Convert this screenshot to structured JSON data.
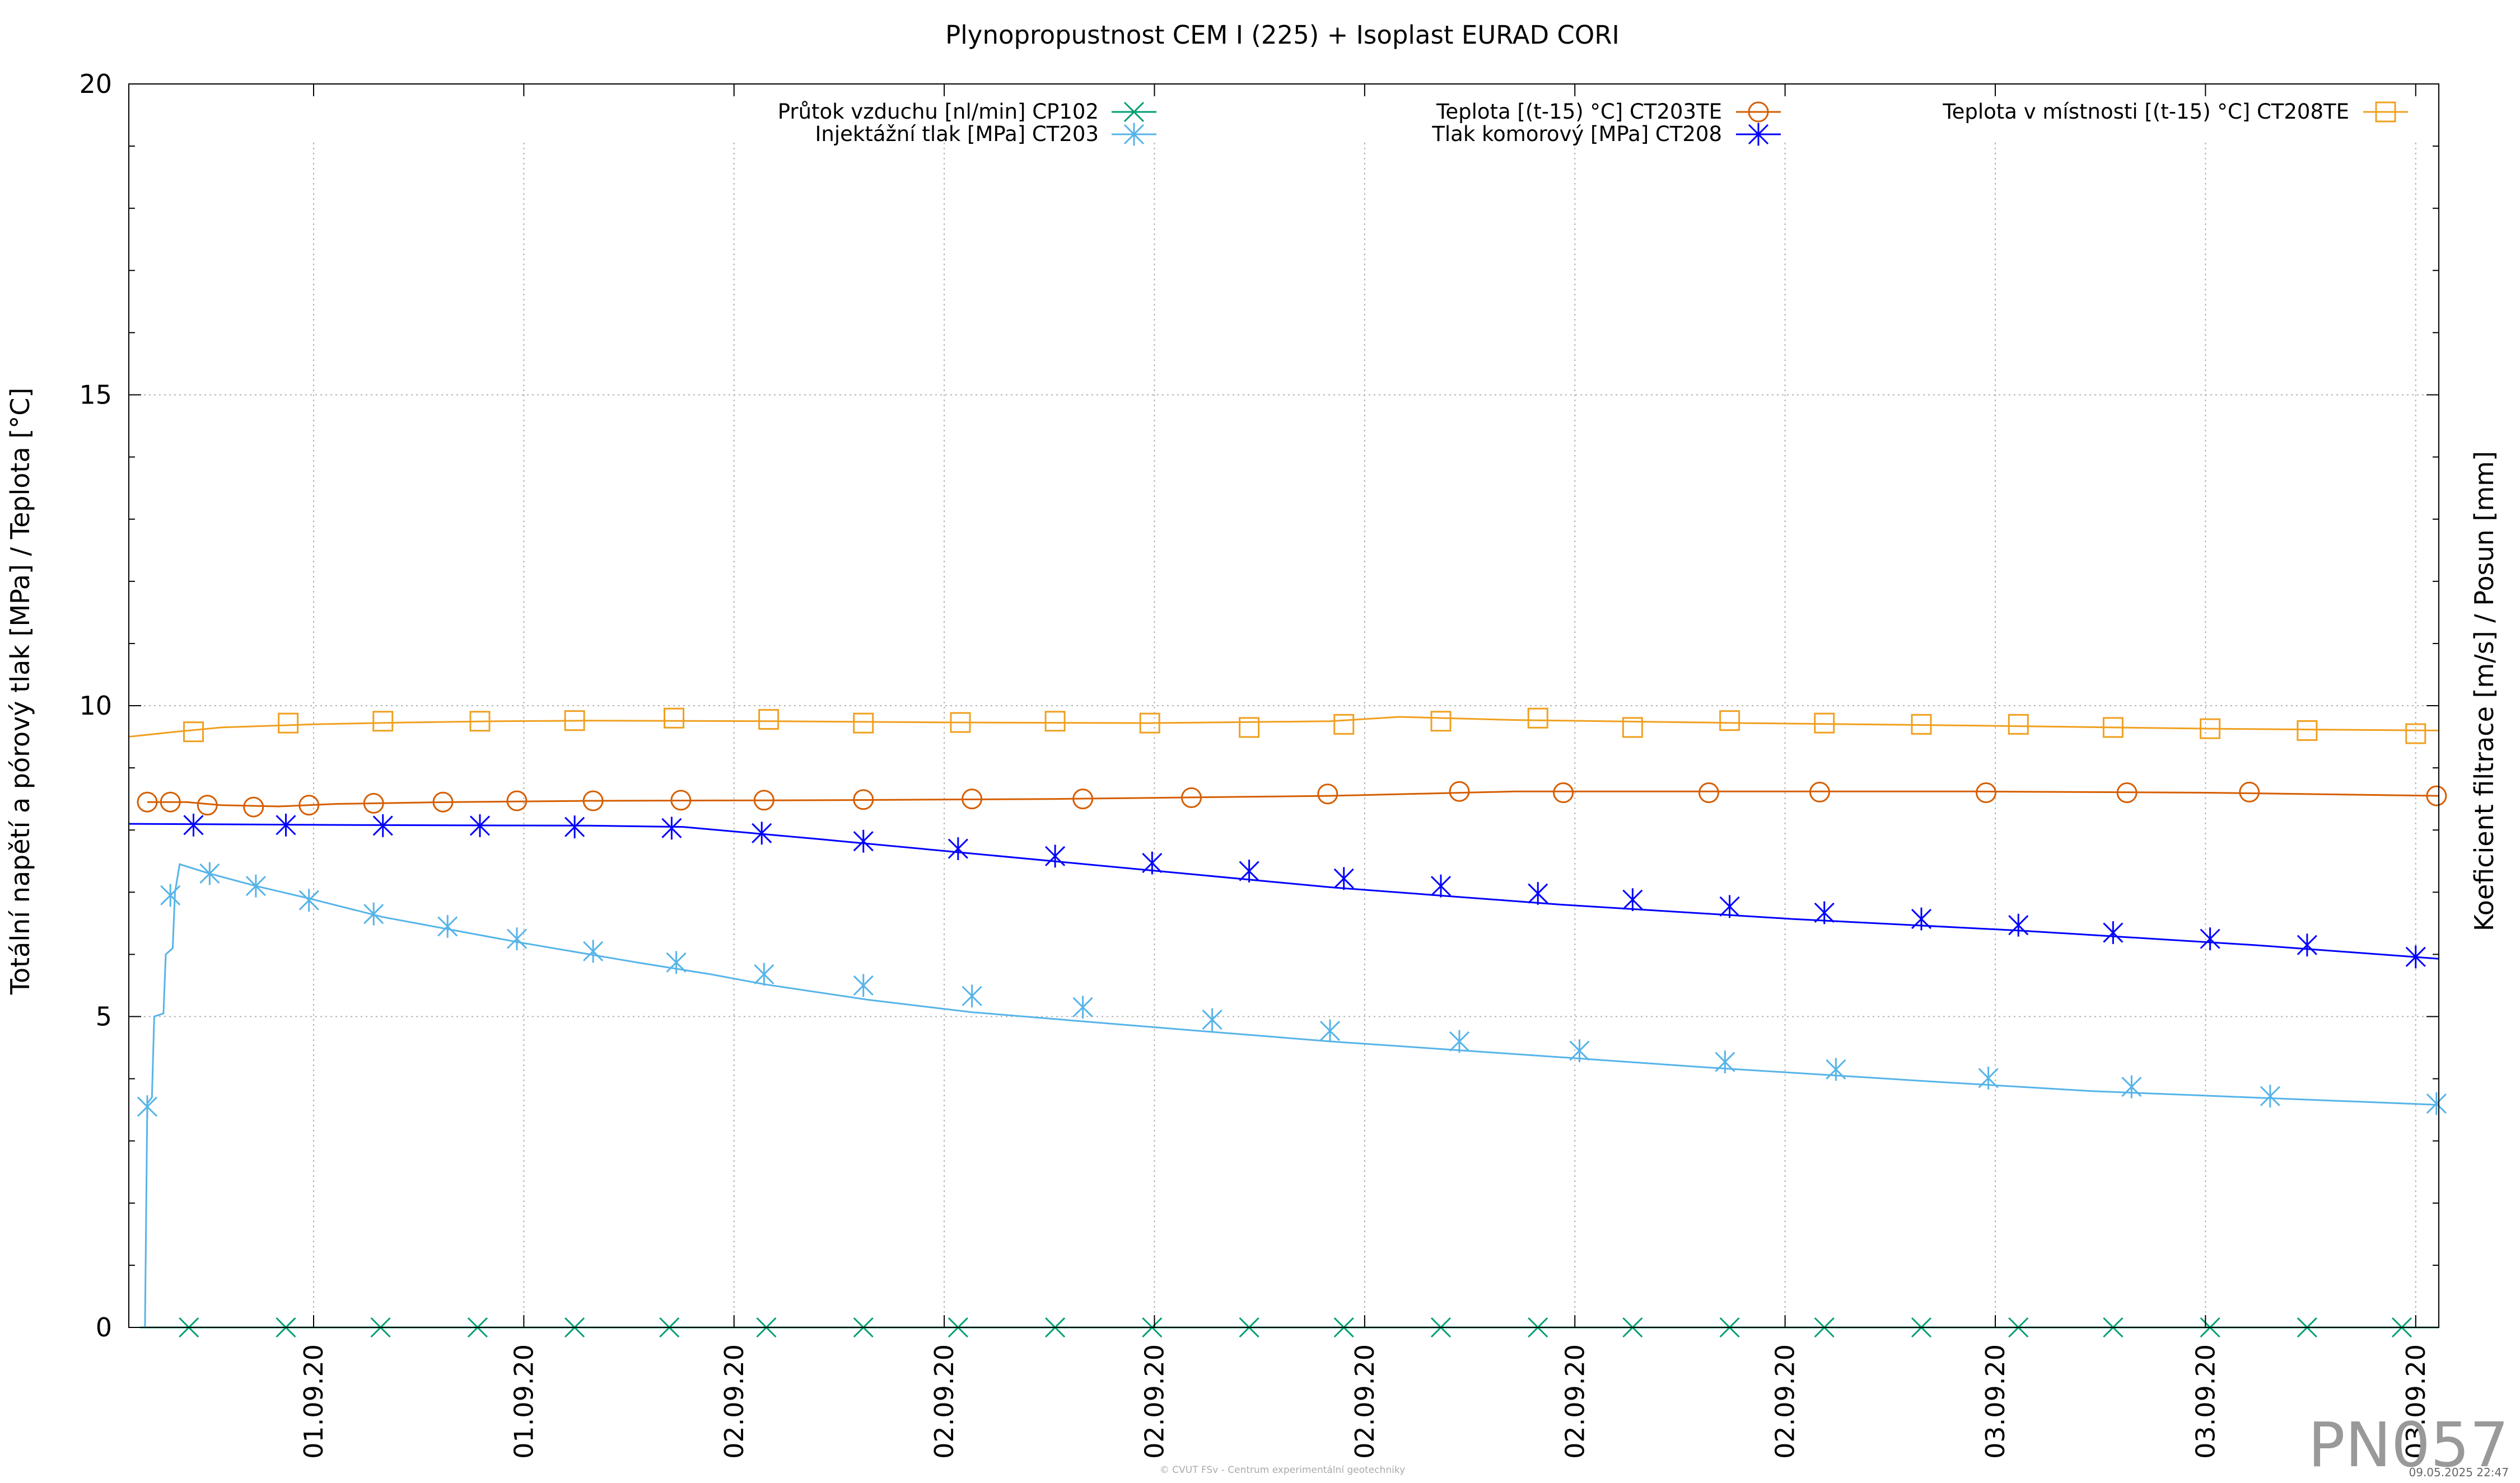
{
  "chart_data": {
    "type": "line",
    "title": "Plynopropustnost CEM I (225) + Isoplast EURAD CORI",
    "ylabel": "Totální napětí a pórový tlak [MPa] / Teplota [°C]",
    "y2label": "Koeficient filtrace [m/s] / Posun [mm]",
    "ylim": [
      0,
      20
    ],
    "yticks": [
      0,
      5,
      10,
      15,
      20
    ],
    "x_range": [
      0,
      100
    ],
    "xticks": [
      {
        "x": 8,
        "label": "01.09.20"
      },
      {
        "x": 17.1,
        "label": "01.09.20"
      },
      {
        "x": 26.2,
        "label": "02.09.20"
      },
      {
        "x": 35.3,
        "label": "02.09.20"
      },
      {
        "x": 44.4,
        "label": "02.09.20"
      },
      {
        "x": 53.5,
        "label": "02.09.20"
      },
      {
        "x": 62.6,
        "label": "02.09.20"
      },
      {
        "x": 71.7,
        "label": "02.09.20"
      },
      {
        "x": 80.8,
        "label": "03.09.20"
      },
      {
        "x": 89.9,
        "label": "03.09.20"
      },
      {
        "x": 99,
        "label": "03.09.20"
      }
    ],
    "grid": true,
    "series": [
      {
        "name": "Průtok vzduchu [nl/min] CP102",
        "color": "#009e73",
        "marker": "x",
        "x": [
          0.5,
          100
        ],
        "y": [
          0,
          0
        ],
        "mx": [
          2.6,
          6.8,
          10.9,
          15.1,
          19.3,
          23.4,
          27.6,
          31.8,
          35.9,
          40.1,
          44.3,
          48.5,
          52.6,
          56.8,
          61,
          65.1,
          69.3,
          73.4,
          77.6,
          81.8,
          85.9,
          90.1,
          94.3,
          98.4
        ],
        "my": [
          0,
          0,
          0,
          0,
          0,
          0,
          0,
          0,
          0,
          0,
          0,
          0,
          0,
          0,
          0,
          0,
          0,
          0,
          0,
          0,
          0,
          0,
          0,
          0
        ]
      },
      {
        "name": "Injektážní tlak [MPa] CT203",
        "color": "#56b4e9",
        "marker": "asterisk",
        "x": [
          0.7,
          0.8,
          1.0,
          1.1,
          1.5,
          1.6,
          1.9,
          2.0,
          2.2,
          3.5,
          5.5,
          7.8,
          11.0,
          16.8,
          22.0,
          25.2,
          27.5,
          32.0,
          36.5,
          44.0,
          52.0,
          62.6,
          68.0,
          78.3,
          85.0,
          100
        ],
        "y": [
          0,
          3.6,
          3.7,
          5.0,
          5.05,
          6.0,
          6.1,
          7.0,
          7.45,
          7.3,
          7.1,
          6.9,
          6.6,
          6.2,
          5.87,
          5.68,
          5.52,
          5.27,
          5.07,
          4.84,
          4.6,
          4.33,
          4.19,
          3.95,
          3.8,
          3.58
        ],
        "mx": [
          0.8,
          1.8,
          3.5,
          5.5,
          7.8,
          10.6,
          13.8,
          16.8,
          20.1,
          23.7,
          27.5,
          31.8,
          36.5,
          41.3,
          46.9,
          52.0,
          57.6,
          62.8,
          69.1,
          73.9,
          80.5,
          86.7,
          92.7,
          99.9
        ],
        "my": [
          3.55,
          6.95,
          7.3,
          7.1,
          6.87,
          6.65,
          6.45,
          6.25,
          6.05,
          5.87,
          5.68,
          5.5,
          5.33,
          5.15,
          4.95,
          4.77,
          4.6,
          4.45,
          4.27,
          4.15,
          4.01,
          3.87,
          3.72,
          3.6
        ]
      },
      {
        "name": "Teplota [(t-15) °C] CT203TE",
        "color": "#d55e00",
        "marker": "circle",
        "x": [
          0.8,
          2.5,
          4.0,
          6.5,
          9.0,
          14.0,
          20.0,
          30.0,
          40.0,
          52.0,
          60.0,
          70.0,
          80.0,
          90.0,
          100
        ],
        "y": [
          8.45,
          8.45,
          8.4,
          8.38,
          8.42,
          8.45,
          8.47,
          8.48,
          8.5,
          8.55,
          8.62,
          8.62,
          8.62,
          8.6,
          8.55
        ],
        "mx": [
          0.8,
          1.8,
          3.4,
          5.4,
          7.8,
          10.6,
          13.6,
          16.8,
          20.1,
          23.9,
          27.5,
          31.8,
          36.5,
          41.3,
          46.0,
          51.9,
          57.6,
          62.1,
          68.4,
          73.2,
          80.4,
          86.5,
          91.8,
          99.9
        ],
        "my": [
          8.45,
          8.45,
          8.4,
          8.37,
          8.4,
          8.43,
          8.45,
          8.47,
          8.47,
          8.48,
          8.48,
          8.49,
          8.5,
          8.5,
          8.52,
          8.58,
          8.62,
          8.6,
          8.6,
          8.61,
          8.6,
          8.6,
          8.61,
          8.55
        ]
      },
      {
        "name": "Tlak komorový [MPa] CT208",
        "color": "#0000ff",
        "marker": "asterisk",
        "x": [
          0,
          10,
          20,
          24,
          30,
          40,
          52,
          62,
          72,
          82,
          92,
          100
        ],
        "y": [
          8.1,
          8.08,
          8.07,
          8.05,
          7.85,
          7.5,
          7.08,
          6.8,
          6.57,
          6.38,
          6.15,
          5.93
        ],
        "mx": [
          2.8,
          6.8,
          11.0,
          15.2,
          19.3,
          23.5,
          27.4,
          31.8,
          35.9,
          40.1,
          44.3,
          48.5,
          52.6,
          56.8,
          61.0,
          65.1,
          69.3,
          73.4,
          77.6,
          81.8,
          85.9,
          90.1,
          94.3,
          99.0
        ],
        "my": [
          8.08,
          8.08,
          8.07,
          8.07,
          8.05,
          8.03,
          7.95,
          7.82,
          7.7,
          7.58,
          7.47,
          7.34,
          7.22,
          7.1,
          6.98,
          6.88,
          6.77,
          6.67,
          6.57,
          6.47,
          6.35,
          6.25,
          6.15,
          5.96
        ]
      },
      {
        "name": "Teplota v místnosti [(t-15) °C] CT208TE",
        "color": "#f0a020",
        "marker": "square",
        "x": [
          0,
          2,
          4,
          8,
          12,
          16,
          20,
          28,
          36,
          44,
          52,
          55,
          60,
          70,
          80,
          90,
          100
        ],
        "y": [
          9.5,
          9.58,
          9.65,
          9.7,
          9.73,
          9.75,
          9.76,
          9.75,
          9.73,
          9.72,
          9.75,
          9.82,
          9.77,
          9.72,
          9.68,
          9.63,
          9.6
        ],
        "mx": [
          2.8,
          6.9,
          11.0,
          15.2,
          19.3,
          23.6,
          27.7,
          31.8,
          36.0,
          40.1,
          44.2,
          48.5,
          52.6,
          56.8,
          61.0,
          65.1,
          69.3,
          73.4,
          77.6,
          81.8,
          85.9,
          90.1,
          94.3,
          99.0
        ],
        "my": [
          9.58,
          9.72,
          9.75,
          9.75,
          9.76,
          9.8,
          9.78,
          9.72,
          9.73,
          9.75,
          9.72,
          9.65,
          9.7,
          9.75,
          9.8,
          9.65,
          9.76,
          9.72,
          9.7,
          9.7,
          9.65,
          9.63,
          9.6,
          9.55
        ]
      }
    ]
  },
  "footer": {
    "credit": "© CVUT FSv - Centrum experimentální geotechniky",
    "timestamp": "09.05.2025 22:47",
    "watermark": "PN057"
  }
}
